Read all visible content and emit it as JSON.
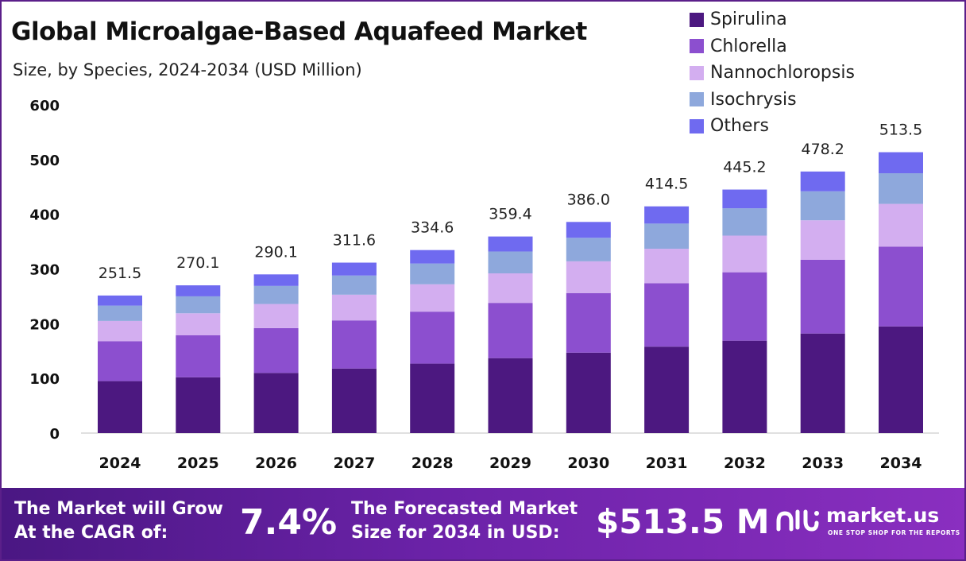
{
  "chart_data": {
    "type": "bar",
    "stacked": true,
    "title": "Global Microalgae-Based Aquafeed Market",
    "subtitle": "Size, by Species, 2024-2034 (USD Million)",
    "categories": [
      "2024",
      "2025",
      "2026",
      "2027",
      "2028",
      "2029",
      "2030",
      "2031",
      "2032",
      "2033",
      "2034"
    ],
    "series": [
      {
        "name": "Spirulina",
        "color": "#4c1880",
        "values": [
          95,
          102,
          110,
          118,
          127,
          137,
          147,
          158,
          169,
          182,
          195
        ]
      },
      {
        "name": "Chlorella",
        "color": "#8c4fcf",
        "values": [
          73,
          77,
          82,
          88,
          95,
          101,
          109,
          116,
          125,
          135,
          146
        ]
      },
      {
        "name": "Nannochloropsis",
        "color": "#d3aef0",
        "values": [
          37,
          40,
          44,
          47,
          50,
          54,
          58,
          63,
          67,
          72,
          78
        ]
      },
      {
        "name": "Isochrysis",
        "color": "#8ea8dc",
        "values": [
          28,
          31,
          33,
          35,
          38,
          40,
          43,
          46,
          50,
          53,
          56
        ]
      },
      {
        "name": "Others",
        "color": "#6f6af0",
        "values": [
          18.5,
          20.1,
          21.1,
          23.6,
          24.6,
          27.4,
          29.0,
          31.5,
          34.2,
          36.2,
          38.5
        ]
      }
    ],
    "totals": [
      "251.5",
      "270.1",
      "290.1",
      "311.6",
      "334.6",
      "359.4",
      "386.0",
      "414.5",
      "445.2",
      "478.2",
      "513.5"
    ],
    "ylim": [
      0,
      600
    ],
    "yticks": [
      "0",
      "100",
      "200",
      "300",
      "400",
      "500",
      "600"
    ],
    "xlabel": "",
    "ylabel": "",
    "grid": false,
    "legend_position": "top-right"
  },
  "banner": {
    "cagr_label_line1": "The Market will Grow",
    "cagr_label_line2": "At the CAGR of:",
    "cagr_value": "7.4%",
    "forecast_label_line1": "The Forecasted Market",
    "forecast_label_line2": "Size for 2034 in USD:",
    "forecast_value": "$513.5 M",
    "logo_name": "market.us",
    "logo_tagline": "ONE STOP SHOP FOR THE REPORTS",
    "logo_icon": "market-us-logo-icon"
  }
}
